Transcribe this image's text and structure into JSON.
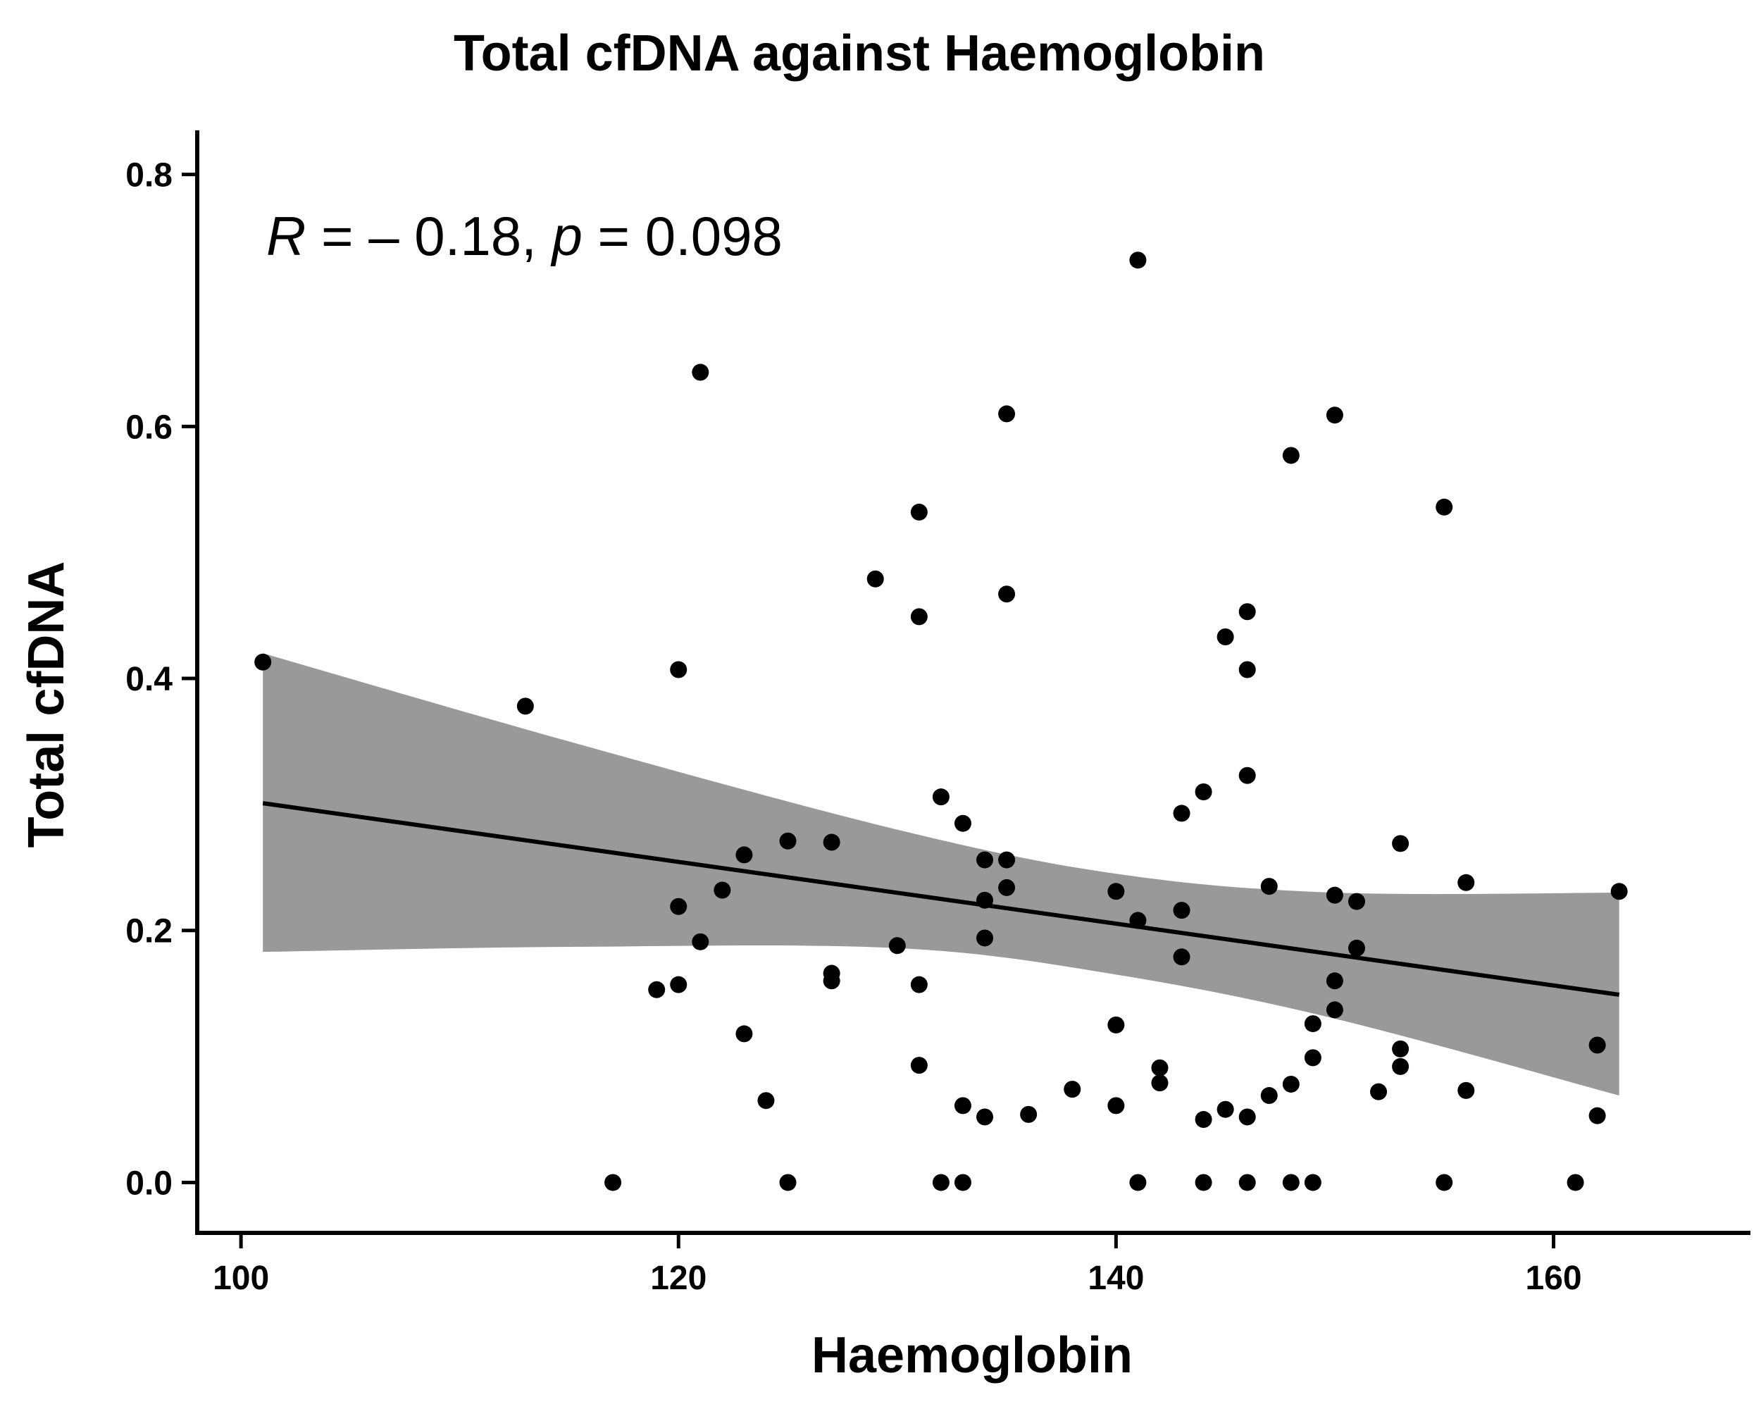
{
  "chart_data": {
    "type": "scatter",
    "title": "Total cfDNA against Haemoglobin",
    "xlabel": "Haemoglobin",
    "ylabel": "Total cfDNA",
    "xlim": [
      98,
      169
    ],
    "ylim": [
      -0.04,
      0.835
    ],
    "xticks": [
      100,
      120,
      140,
      160
    ],
    "yticks": [
      0.0,
      0.2,
      0.4,
      0.6,
      0.8
    ],
    "xtick_labels": [
      "100",
      "120",
      "140",
      "160"
    ],
    "ytick_labels": [
      "0.0",
      "0.2",
      "0.4",
      "0.6",
      "0.8"
    ],
    "grid": false,
    "annotation": {
      "r_symbol": "R",
      "r_text": " = – 0.18, ",
      "p_symbol": "p",
      "p_text": " = 0.098"
    },
    "points": {
      "x": [
        101,
        113,
        117,
        119,
        120,
        120,
        120,
        121,
        121,
        122,
        123,
        123,
        124,
        125,
        125,
        127,
        127,
        127,
        129,
        130,
        131,
        131,
        131,
        131,
        132,
        132,
        133,
        133,
        133,
        134,
        134,
        134,
        134,
        135,
        135,
        135,
        135,
        136,
        138,
        140,
        140,
        140,
        141,
        141,
        141,
        142,
        142,
        143,
        143,
        143,
        144,
        144,
        144,
        145,
        145,
        146,
        146,
        146,
        146,
        146,
        147,
        147,
        148,
        148,
        148,
        149,
        149,
        149,
        150,
        150,
        150,
        150,
        151,
        151,
        152,
        153,
        153,
        153,
        155,
        155,
        156,
        156,
        161,
        162,
        162,
        163
      ],
      "y": [
        0.413,
        0.378,
        0.0,
        0.153,
        0.407,
        0.219,
        0.157,
        0.643,
        0.191,
        0.232,
        0.26,
        0.118,
        0.065,
        0.271,
        0.0,
        0.27,
        0.166,
        0.16,
        0.479,
        0.188,
        0.532,
        0.449,
        0.157,
        0.093,
        0.306,
        0.0,
        0.285,
        0.061,
        0.0,
        0.256,
        0.224,
        0.194,
        0.052,
        0.61,
        0.467,
        0.256,
        0.234,
        0.054,
        0.074,
        0.231,
        0.125,
        0.061,
        0.732,
        0.208,
        0.0,
        0.091,
        0.079,
        0.293,
        0.216,
        0.179,
        0.31,
        0.05,
        0.0,
        0.433,
        0.058,
        0.453,
        0.407,
        0.323,
        0.052,
        0.0,
        0.235,
        0.069,
        0.577,
        0.078,
        0.0,
        0.126,
        0.099,
        0.0,
        0.609,
        0.228,
        0.16,
        0.137,
        0.223,
        0.186,
        0.072,
        0.269,
        0.106,
        0.092,
        0.536,
        0.0,
        0.238,
        0.073,
        0.0,
        0.109,
        0.053,
        0.231
      ]
    },
    "fit_line": {
      "x": [
        101,
        163
      ],
      "y": [
        0.301,
        0.149
      ]
    },
    "confidence_band": {
      "x": [
        101,
        115,
        130,
        140,
        150,
        163
      ],
      "upper": [
        0.42,
        0.35,
        0.28,
        0.245,
        0.23,
        0.23
      ],
      "lower": [
        0.183,
        0.187,
        0.186,
        0.165,
        0.13,
        0.069
      ]
    },
    "colors": {
      "points": "#000000",
      "line": "#000000",
      "band": "#999999",
      "axis": "#000000",
      "background": "#ffffff"
    }
  }
}
